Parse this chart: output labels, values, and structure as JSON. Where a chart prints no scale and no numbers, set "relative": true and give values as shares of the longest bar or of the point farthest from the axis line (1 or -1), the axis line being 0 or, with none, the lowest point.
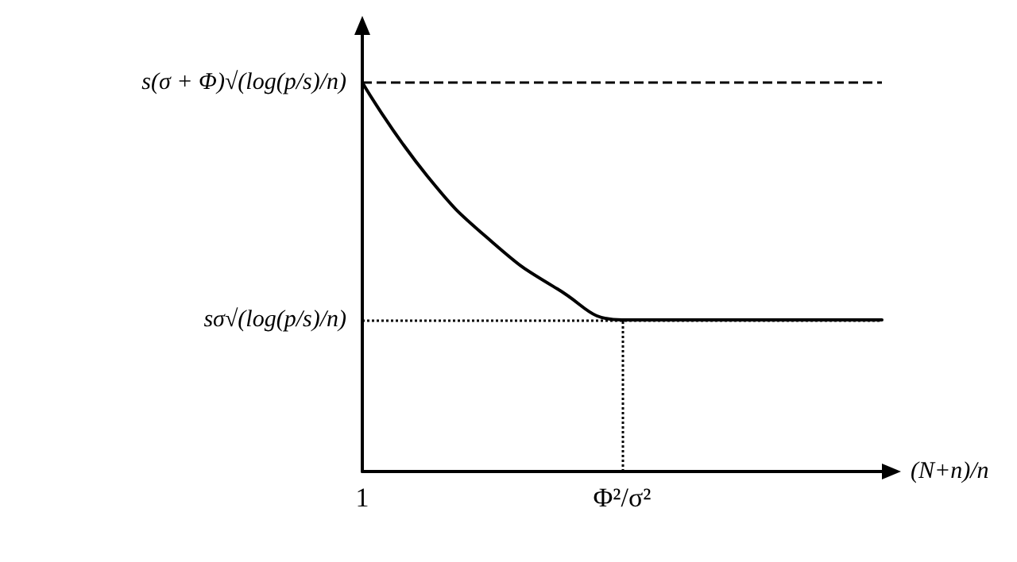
{
  "chart_data": {
    "type": "line",
    "relative": true,
    "xlabel": "(N+n)/n",
    "categories": [
      "1",
      null,
      null,
      null,
      "Φ²/σ²",
      null,
      null,
      null,
      null
    ],
    "series": [
      {
        "color": "#000000",
        "values": [
          1,
          0.76,
          0.59,
          0.47,
          0.39,
          0.39,
          0.39,
          0.39,
          0.39
        ]
      }
    ],
    "ref_lines": [
      {
        "axis": "y",
        "value": 1,
        "label": "s(σ + Φ)√(log(p/s)/n)",
        "line_style": "dashed",
        "color": "#000000"
      },
      {
        "axis": "y",
        "value": 0.39,
        "label": "sσ√(log(p/s)/n)",
        "line_style": "dotted",
        "color": "#000000"
      },
      {
        "axis": "x",
        "value": "Φ²/σ²",
        "line_style": "dotted",
        "color": "#000000"
      }
    ],
    "marker": "none",
    "line_style": "solid",
    "grid": false
  }
}
